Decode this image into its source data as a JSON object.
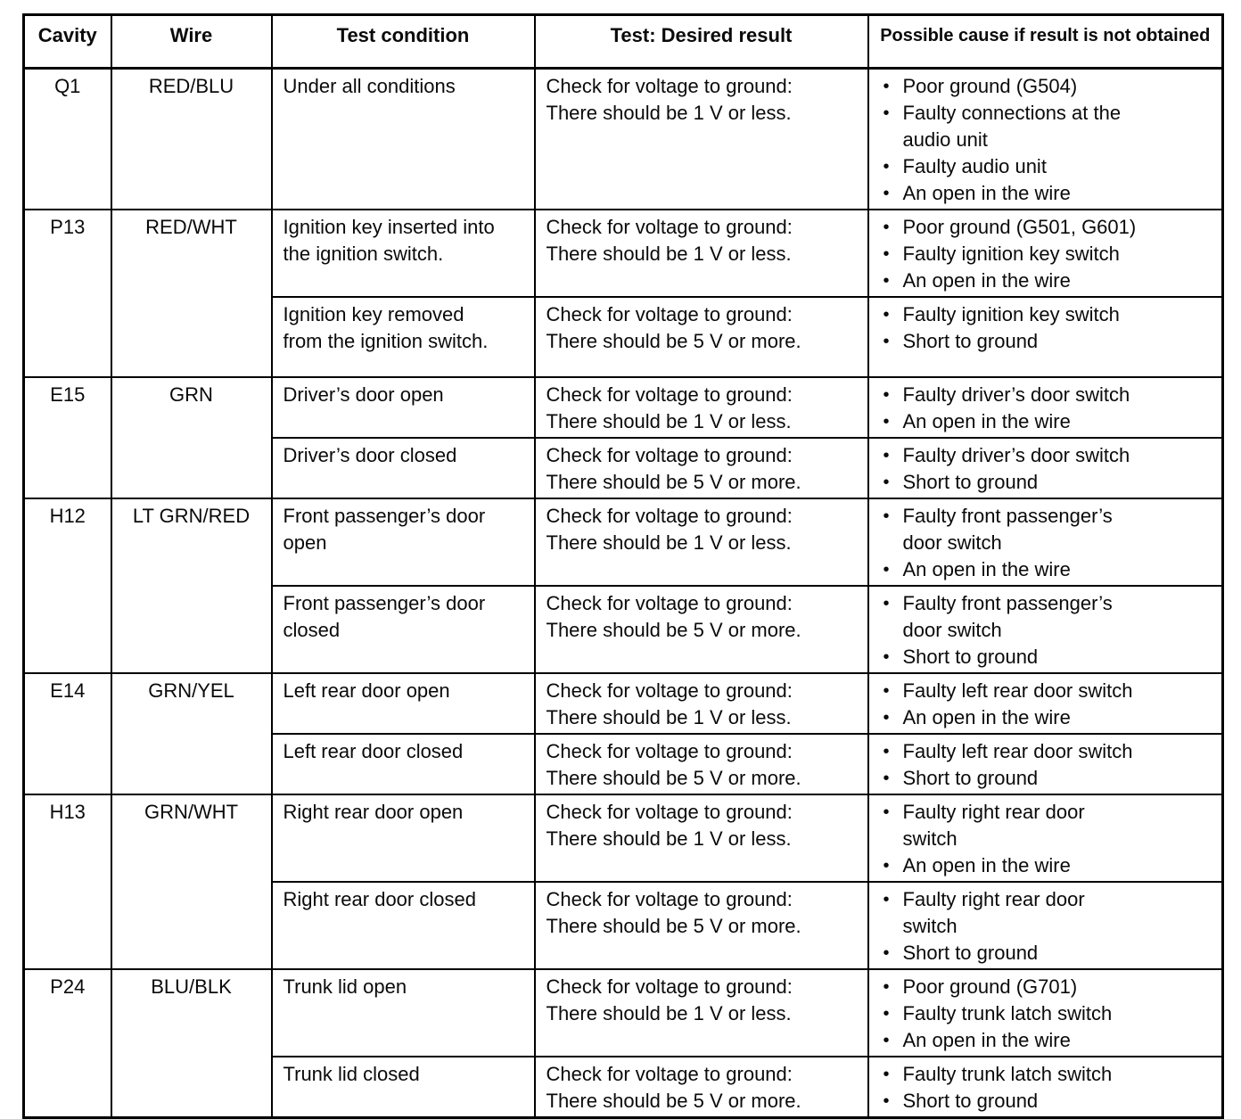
{
  "page": {
    "background": "#ffffff",
    "text_color": "#0a0a0a",
    "border_color": "#000000"
  },
  "table": {
    "headers": [
      "Cavity",
      "Wire",
      "Test condition",
      "Test: Desired result",
      "Possible cause if result is not obtained"
    ],
    "groups": [
      {
        "cavity": "Q1",
        "wire": "RED/BLU",
        "tests": [
          {
            "condition": "Under all conditions",
            "result_lines": [
              "Check for voltage to ground:",
              "There should be 1 V or less."
            ],
            "causes": [
              "Poor ground (G504)",
              "Faulty connections at the audio unit",
              "Faulty audio unit",
              "An open in the wire"
            ]
          }
        ]
      },
      {
        "cavity": "P13",
        "wire": "RED/WHT",
        "tests": [
          {
            "condition": "Ignition key inserted into the ignition switch.",
            "result_lines": [
              "Check for voltage to ground:",
              "There should be 1 V or less."
            ],
            "causes": [
              "Poor ground (G501, G601)",
              "Faulty ignition key switch",
              "An open in the wire"
            ]
          },
          {
            "condition": "Ignition key removed from the ignition switch.",
            "result_lines": [
              "Check for voltage to ground:",
              "There should be 5 V or more."
            ],
            "causes": [
              "Faulty ignition key switch",
              "Short to ground"
            ]
          }
        ]
      },
      {
        "cavity": "E15",
        "wire": "GRN",
        "tests": [
          {
            "condition": "Driver’s door open",
            "result_lines": [
              "Check for voltage to ground:",
              "There should be 1 V or less."
            ],
            "causes": [
              "Faulty driver’s door switch",
              "An open in the wire"
            ]
          },
          {
            "condition": "Driver’s door closed",
            "result_lines": [
              "Check for voltage to ground:",
              "There should be 5 V or more."
            ],
            "causes": [
              "Faulty driver’s door switch",
              "Short to ground"
            ]
          }
        ]
      },
      {
        "cavity": "H12",
        "wire": "LT GRN/RED",
        "tests": [
          {
            "condition": "Front passenger’s door open",
            "result_lines": [
              "Check for voltage to ground:",
              "There should be 1 V or less."
            ],
            "causes": [
              "Faulty front passenger’s door switch",
              "An open in the wire"
            ]
          },
          {
            "condition": "Front passenger’s door closed",
            "result_lines": [
              "Check for voltage to ground:",
              "There should be 5 V or more."
            ],
            "causes": [
              "Faulty front passenger’s door switch",
              "Short to ground"
            ]
          }
        ]
      },
      {
        "cavity": "E14",
        "wire": "GRN/YEL",
        "tests": [
          {
            "condition": "Left rear door open",
            "result_lines": [
              "Check for voltage to ground:",
              "There should be 1 V or less."
            ],
            "causes": [
              "Faulty left rear door switch",
              "An open in the wire"
            ]
          },
          {
            "condition": "Left rear door closed",
            "result_lines": [
              "Check for voltage to ground:",
              "There should be 5 V or more."
            ],
            "causes": [
              "Faulty left rear door switch",
              "Short to ground"
            ]
          }
        ]
      },
      {
        "cavity": "H13",
        "wire": "GRN/WHT",
        "tests": [
          {
            "condition": "Right rear door open",
            "result_lines": [
              "Check for voltage to ground:",
              "There should be 1 V or less."
            ],
            "causes": [
              "Faulty right rear door switch",
              "An open in the wire"
            ]
          },
          {
            "condition": "Right rear door closed",
            "result_lines": [
              "Check for voltage to ground:",
              "There should be 5 V or more."
            ],
            "causes": [
              "Faulty right rear door switch",
              "Short to ground"
            ]
          }
        ]
      },
      {
        "cavity": "P24",
        "wire": "BLU/BLK",
        "tests": [
          {
            "condition": "Trunk lid open",
            "result_lines": [
              "Check for voltage to ground:",
              "There should be 1 V or less."
            ],
            "causes": [
              "Poor ground (G701)",
              "Faulty trunk latch switch",
              "An open in the wire"
            ]
          },
          {
            "condition": "Trunk lid closed",
            "result_lines": [
              "Check for voltage to ground:",
              "There should be 5 V or more."
            ],
            "causes": [
              "Faulty trunk latch switch",
              "Short to ground"
            ]
          }
        ]
      }
    ]
  }
}
